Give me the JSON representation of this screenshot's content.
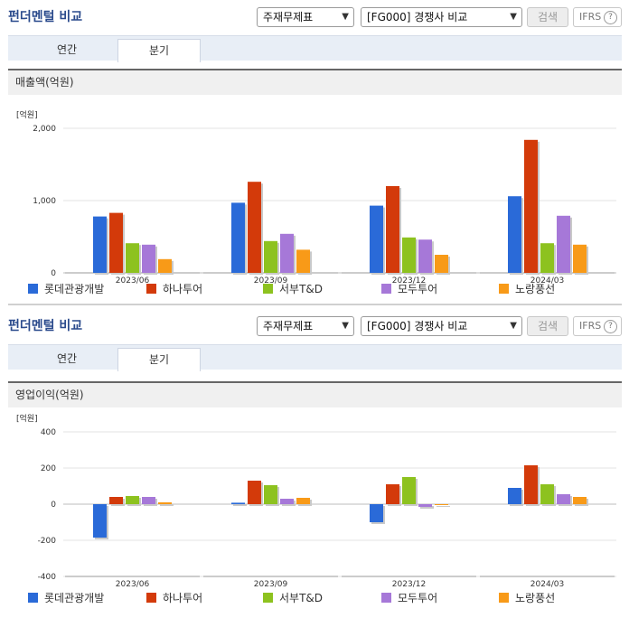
{
  "panels": [
    {
      "title": "펀더멘털 비교",
      "select1": "주재무제표",
      "select2": "[FG000] 경쟁사 비교",
      "search_label": "검색",
      "ifrs_label": "IFRS",
      "help_label": "?",
      "tabs": [
        "연간",
        "분기"
      ],
      "active_tab": "분기",
      "metric_title": "매출액(억원)"
    },
    {
      "title": "펀더멘털 비교",
      "select1": "주재무제표",
      "select2": "[FG000] 경쟁사 비교",
      "search_label": "검색",
      "ifrs_label": "IFRS",
      "help_label": "?",
      "tabs": [
        "연간",
        "분기"
      ],
      "active_tab": "분기",
      "metric_title": "영업이익(억원)"
    }
  ],
  "series_colors": [
    "#2a6ad8",
    "#d33a0a",
    "#8dc21f",
    "#a678d8",
    "#f89a18"
  ],
  "chart_data": [
    {
      "type": "bar",
      "unit_label": "[억원]",
      "categories": [
        "2023/06",
        "2023/09",
        "2023/12",
        "2024/03"
      ],
      "ylim": [
        0,
        2000
      ],
      "yticks": [
        0,
        1000,
        2000
      ],
      "ytick_labels": [
        "0",
        "1,000",
        "2,000"
      ],
      "grid": true,
      "legend": "bottom",
      "series": [
        {
          "name": "롯데관광개발",
          "values": [
            780,
            970,
            930,
            1060
          ]
        },
        {
          "name": "하나투어",
          "values": [
            830,
            1260,
            1200,
            1840
          ]
        },
        {
          "name": "서부T&D",
          "values": [
            410,
            440,
            490,
            410
          ]
        },
        {
          "name": "모두투어",
          "values": [
            390,
            540,
            460,
            790
          ]
        },
        {
          "name": "노랑풍선",
          "values": [
            190,
            320,
            250,
            390
          ]
        }
      ]
    },
    {
      "type": "bar",
      "unit_label": "[억원]",
      "categories": [
        "2023/06",
        "2023/09",
        "2023/12",
        "2024/03"
      ],
      "ylim": [
        -400,
        400
      ],
      "yticks": [
        -400,
        -200,
        0,
        200,
        400
      ],
      "ytick_labels": [
        "-400",
        "-200",
        "0",
        "200",
        "400"
      ],
      "grid": true,
      "legend": "bottom",
      "series": [
        {
          "name": "롯데관광개발",
          "values": [
            -185,
            8,
            -100,
            90
          ]
        },
        {
          "name": "하나투어",
          "values": [
            40,
            130,
            110,
            215
          ]
        },
        {
          "name": "서부T&D",
          "values": [
            45,
            105,
            150,
            110
          ]
        },
        {
          "name": "모두투어",
          "values": [
            40,
            30,
            -15,
            55
          ]
        },
        {
          "name": "노랑풍선",
          "values": [
            10,
            35,
            0,
            40
          ]
        }
      ]
    }
  ]
}
